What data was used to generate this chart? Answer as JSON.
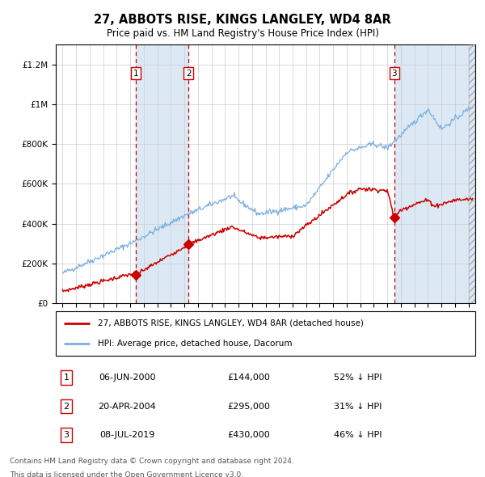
{
  "title": "27, ABBOTS RISE, KINGS LANGLEY, WD4 8AR",
  "subtitle": "Price paid vs. HM Land Registry's House Price Index (HPI)",
  "legend_label_red": "27, ABBOTS RISE, KINGS LANGLEY, WD4 8AR (detached house)",
  "legend_label_blue": "HPI: Average price, detached house, Dacorum",
  "footer1": "Contains HM Land Registry data © Crown copyright and database right 2024.",
  "footer2": "This data is licensed under the Open Government Licence v3.0.",
  "transactions": [
    {
      "id": 1,
      "date": "06-JUN-2000",
      "price": 144000,
      "note": "52% ↓ HPI",
      "x_year": 2000.43
    },
    {
      "id": 2,
      "date": "20-APR-2004",
      "price": 295000,
      "note": "31% ↓ HPI",
      "x_year": 2004.3
    },
    {
      "id": 3,
      "date": "08-JUL-2019",
      "price": 430000,
      "note": "46% ↓ HPI",
      "x_year": 2019.52
    }
  ],
  "color_red": "#cc0000",
  "color_blue": "#7aafe0",
  "color_blue_light": "#dce9f5",
  "color_grid": "#cccccc",
  "ylim": [
    0,
    1300000
  ],
  "xlim_start": 1994.5,
  "xlim_end": 2025.5,
  "background_color": "#ffffff"
}
